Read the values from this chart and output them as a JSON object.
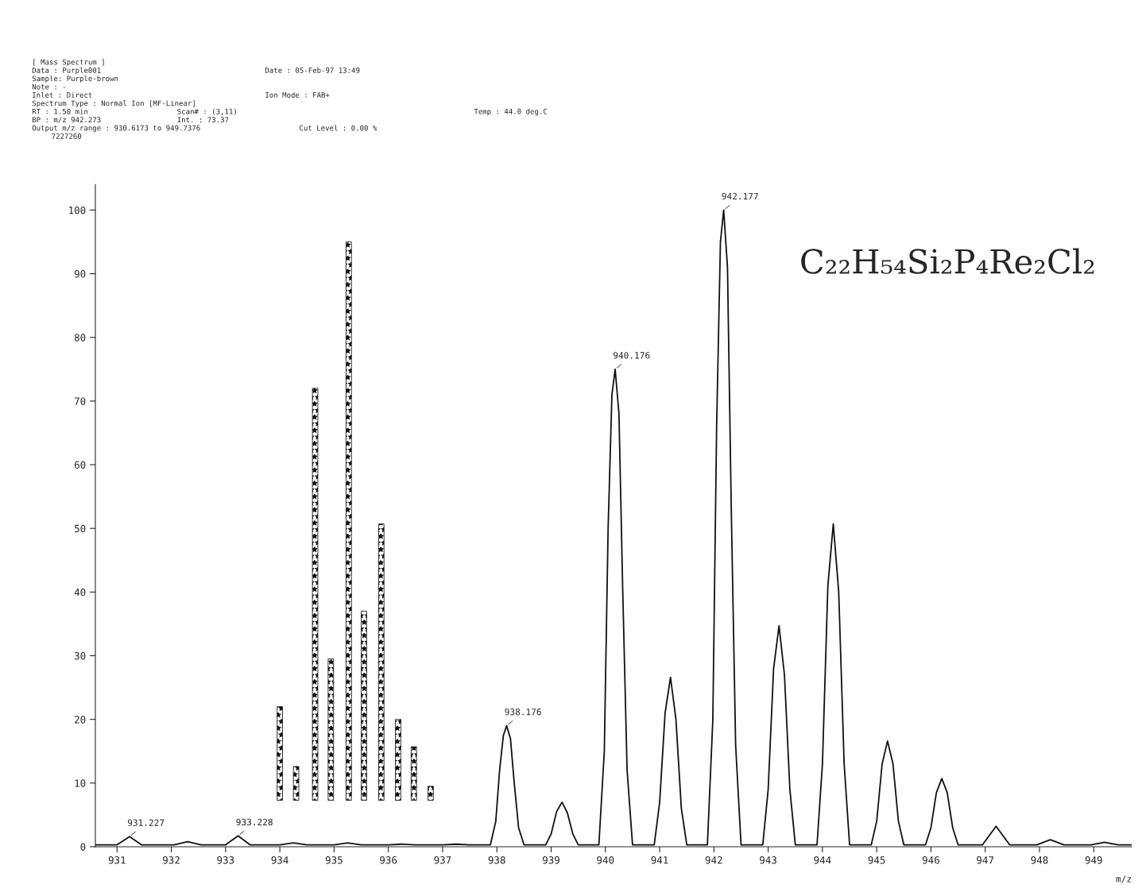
{
  "chart_data": {
    "type": "line",
    "xlabel": "m/z",
    "xlim": [
      930.6,
      949.7
    ],
    "ylim": [
      0,
      104
    ],
    "xticks": [
      931,
      932,
      933,
      934,
      935,
      936,
      937,
      938,
      939,
      940,
      941,
      942,
      943,
      944,
      945,
      946,
      947,
      948,
      949
    ],
    "yticks": [
      0,
      10,
      20,
      30,
      40,
      50,
      60,
      70,
      80,
      90,
      100
    ],
    "grid": false,
    "legend": false,
    "marker": "none",
    "line_style": "solid",
    "series": [
      {
        "color": "#111111",
        "x": [
          930.6,
          931.0,
          931.23,
          931.45,
          932.05,
          932.3,
          932.55,
          933.0,
          933.23,
          933.45,
          934.0,
          934.25,
          934.5,
          935.0,
          935.25,
          935.5,
          936.0,
          936.25,
          936.5,
          937.0,
          937.25,
          937.5,
          937.88,
          937.98,
          938.05,
          938.12,
          938.18,
          938.25,
          938.32,
          938.4,
          938.5,
          938.9,
          939.0,
          939.1,
          939.2,
          939.3,
          939.4,
          939.5,
          939.88,
          939.98,
          940.05,
          940.12,
          940.18,
          940.25,
          940.32,
          940.4,
          940.5,
          940.9,
          941.0,
          941.1,
          941.2,
          941.3,
          941.4,
          941.5,
          941.88,
          941.98,
          942.05,
          942.12,
          942.18,
          942.25,
          942.32,
          942.4,
          942.5,
          942.9,
          943.0,
          943.1,
          943.2,
          943.3,
          943.4,
          943.5,
          943.9,
          944.0,
          944.1,
          944.2,
          944.3,
          944.4,
          944.5,
          944.9,
          945.0,
          945.1,
          945.2,
          945.3,
          945.4,
          945.5,
          945.9,
          946.0,
          946.1,
          946.2,
          946.3,
          946.4,
          946.5,
          946.95,
          947.2,
          947.45,
          947.95,
          948.2,
          948.45,
          948.95,
          949.2,
          949.45,
          949.7
        ],
        "values": [
          0.3,
          0.3,
          1.6,
          0.3,
          0.3,
          0.8,
          0.3,
          0.3,
          1.7,
          0.3,
          0.3,
          0.6,
          0.3,
          0.3,
          0.6,
          0.3,
          0.3,
          0.4,
          0.3,
          0.3,
          0.4,
          0.3,
          0.3,
          4,
          12,
          17.5,
          19,
          17,
          10,
          3,
          0.3,
          0.3,
          2,
          5.5,
          7,
          5.3,
          2,
          0.3,
          0.3,
          15,
          50,
          71,
          75,
          68,
          40,
          12,
          0.3,
          0.3,
          7,
          21,
          26.6,
          20,
          6,
          0.3,
          0.3,
          20,
          66,
          95,
          100,
          91,
          53,
          16,
          0.3,
          0.3,
          9,
          28,
          34.7,
          27,
          9,
          0.3,
          0.3,
          13,
          41,
          50.7,
          40,
          13,
          0.3,
          0.3,
          4,
          13,
          16.6,
          13,
          4,
          0.3,
          0.3,
          3,
          8.5,
          10.7,
          8.5,
          3,
          0.3,
          0.3,
          3.2,
          0.3,
          0.3,
          1.1,
          0.3,
          0.3,
          0.7,
          0.3,
          0.3
        ]
      },
      {
        "type": "bar",
        "color": "#111111",
        "x": [
          934.0,
          934.3,
          934.65,
          934.94,
          935.27,
          935.55,
          935.87,
          936.18,
          936.47,
          936.78
        ],
        "base": [
          7.3,
          7.3,
          7.3,
          7.3,
          7.3,
          7.3,
          7.3,
          7.3,
          7.3,
          7.3
        ],
        "values": [
          14.7,
          5.3,
          64.7,
          22.2,
          87.7,
          29.7,
          43.4,
          12.7,
          8.4,
          2.2
        ]
      }
    ],
    "annotations": [
      "[ Mass Spectrum ]",
      "Data : Purple001",
      "Date : 05-Feb-97 13:49",
      "Sample: Purple-brown",
      "Note : -",
      "Inlet : Direct",
      "Ion Mode : FAB+",
      "Spectrum Type : Normal Ion [MF-Linear]",
      "RT : 1.50 min",
      "Scan# : (3,11)",
      "Temp : 44.0 deg.C",
      "BP : m/z 942.273",
      "Int. : 73.37",
      "Output m/z range : 930.6173 to 949.7376",
      "Cut Level : 0.00 %",
      "7227260",
      "C₂₂H₅₄Si₂P₄Re₂Cl₂",
      {
        "text": "931.227",
        "x": 931.23,
        "y": 1.6
      },
      {
        "text": "933.228",
        "x": 933.23,
        "y": 1.7
      },
      {
        "text": "938.176",
        "x": 938.18,
        "y": 19
      },
      {
        "text": "940.176",
        "x": 940.18,
        "y": 75
      },
      {
        "text": "942.177",
        "x": 942.18,
        "y": 100
      }
    ]
  }
}
